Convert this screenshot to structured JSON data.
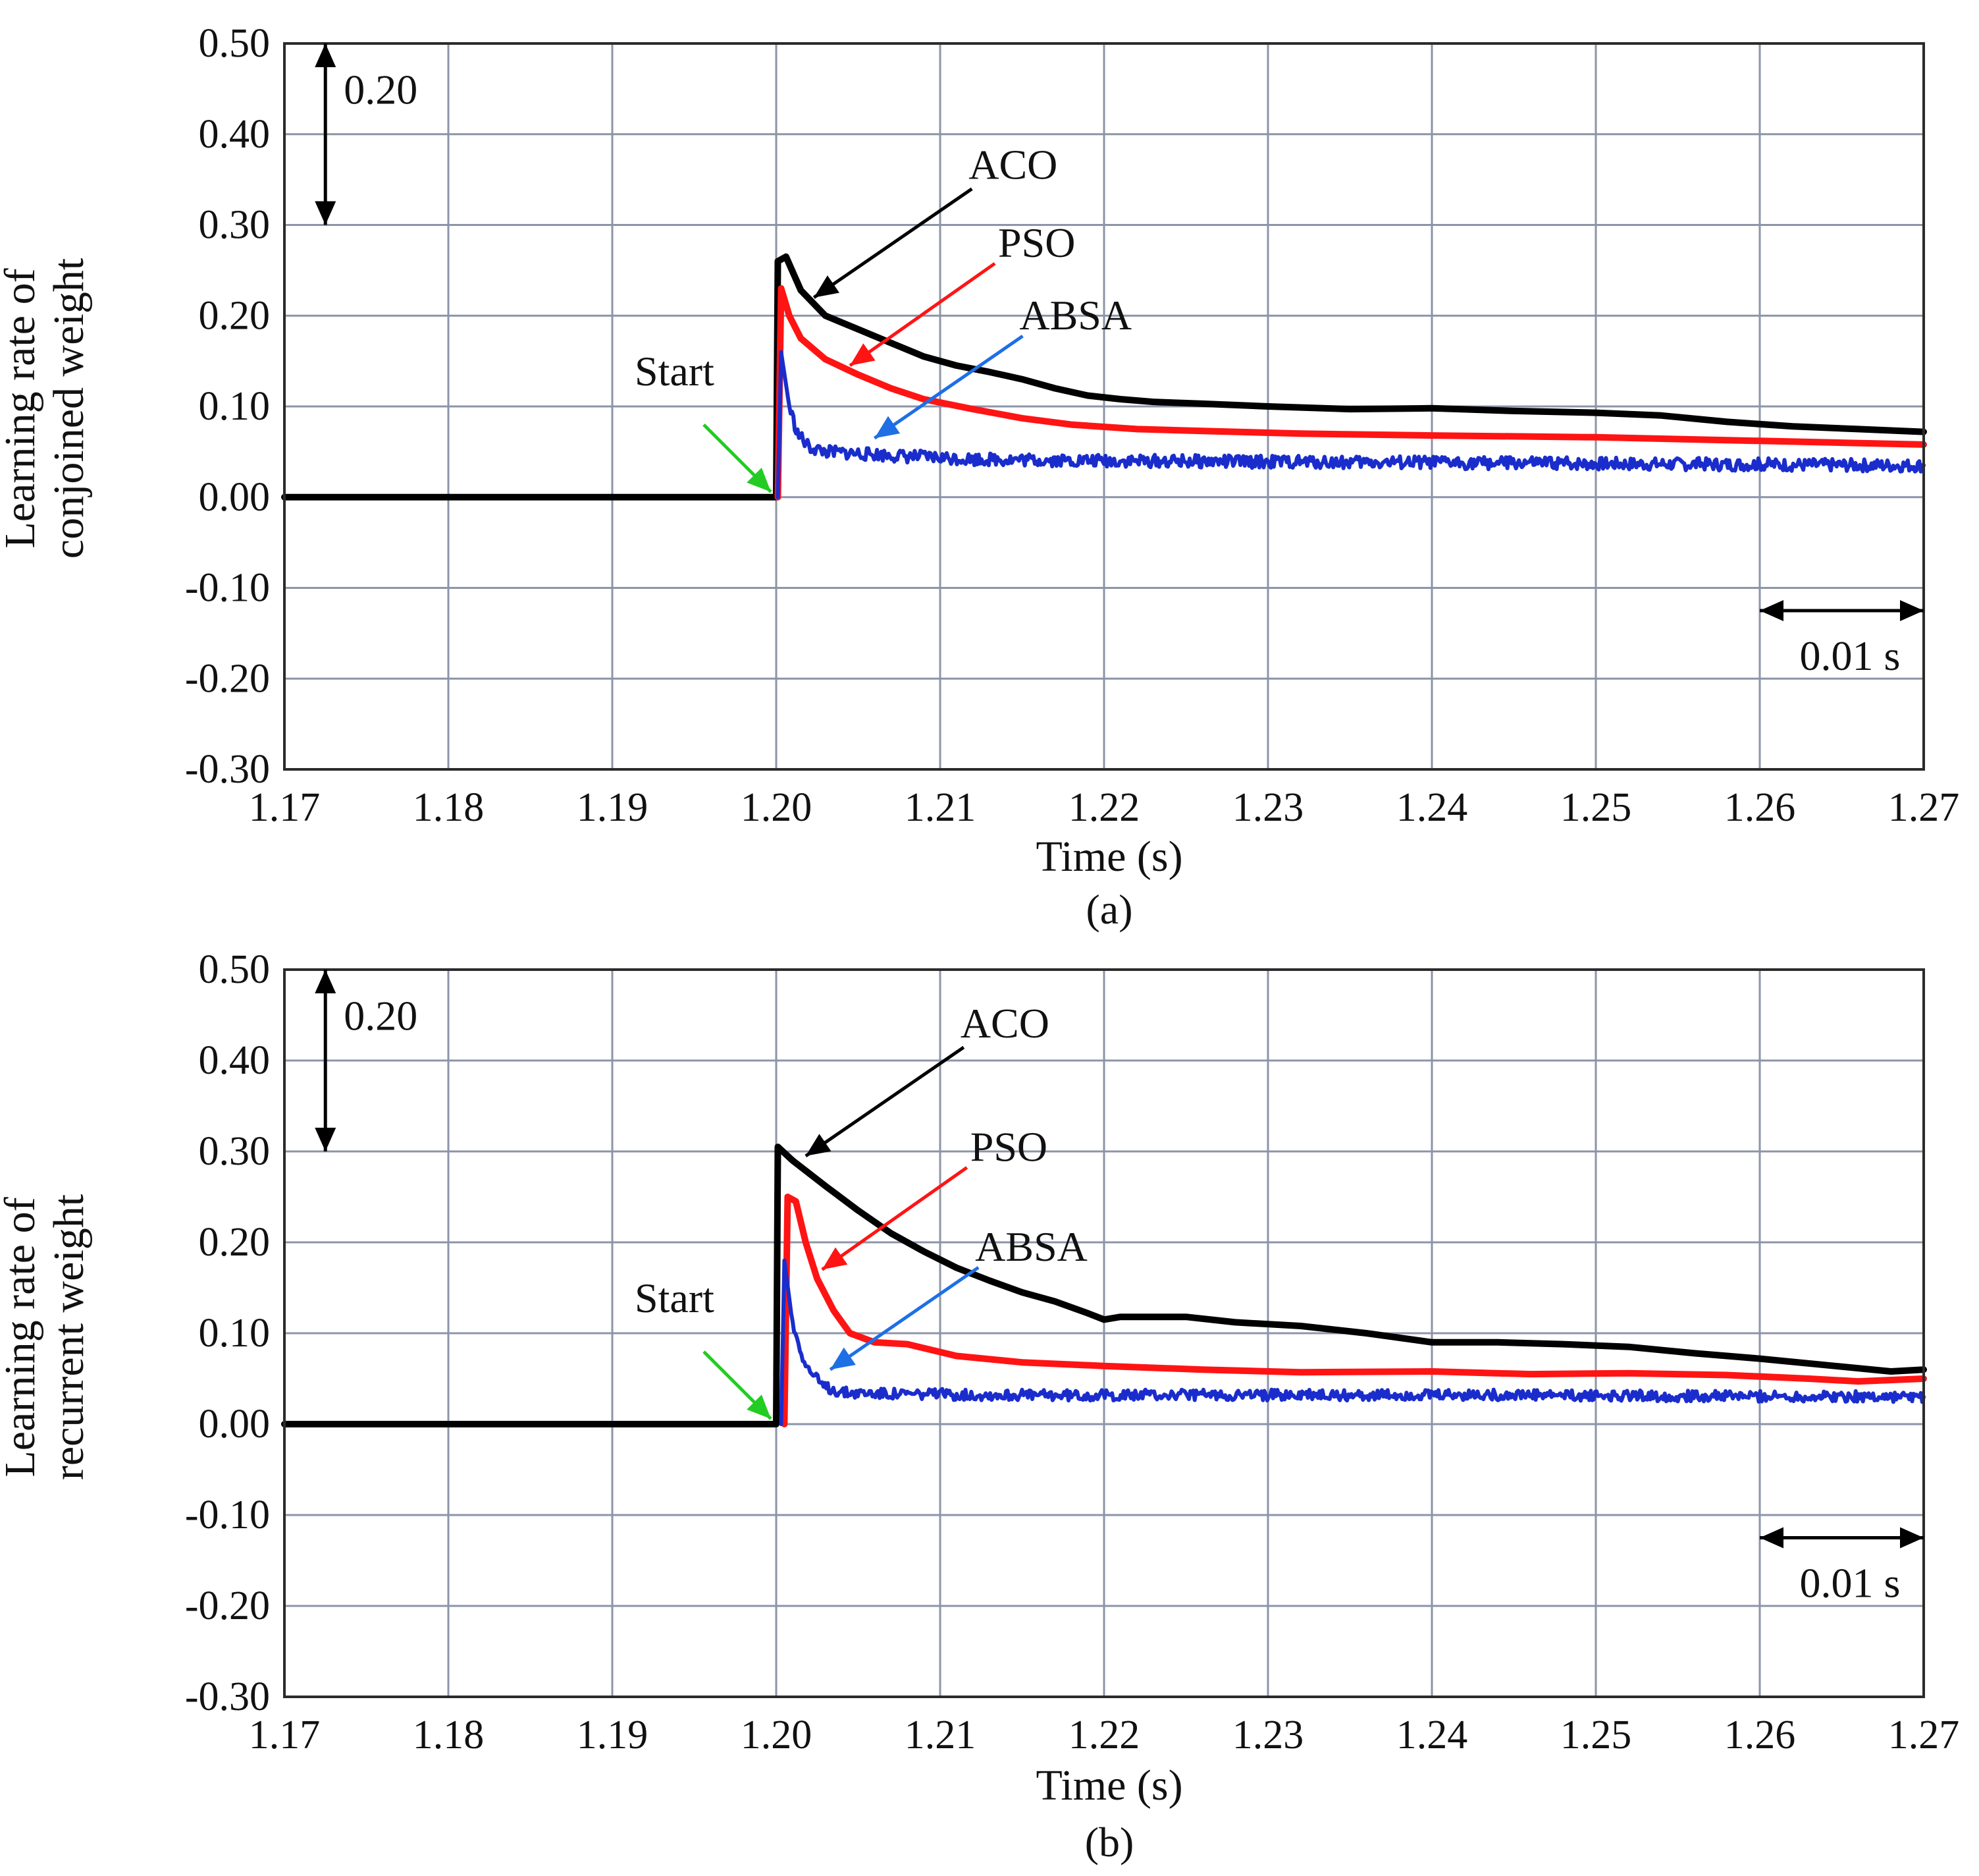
{
  "chart_data": [
    {
      "type": "line",
      "id": "a",
      "caption": "(a)",
      "xlabel": "Time (s)",
      "ylabel_lines": [
        "Learning rate of",
        "conjoined weight"
      ],
      "xlim": [
        1.17,
        1.27
      ],
      "ylim": [
        -0.3,
        0.5
      ],
      "grid": true,
      "x_ticks": [
        "1.17",
        "1.18",
        "1.19",
        "1.20",
        "1.21",
        "1.22",
        "1.23",
        "1.24",
        "1.25",
        "1.26",
        "1.27"
      ],
      "y_ticks": [
        "0.50",
        "0.40",
        "0.30",
        "0.20",
        "0.10",
        "0.00",
        "-0.10",
        "-0.20",
        "-0.30"
      ],
      "scale_bars": {
        "vertical": {
          "label": "0.20",
          "from": 0.3,
          "to": 0.5
        },
        "horizontal": {
          "label": "0.01 s",
          "from": 1.26,
          "to": 1.27
        }
      },
      "annotations": {
        "start": {
          "label": "Start",
          "x": 1.2,
          "y": 0.0
        },
        "aco": {
          "label": "ACO",
          "x": 1.2023,
          "y": 0.22
        },
        "pso": {
          "label": "PSO",
          "x": 1.2045,
          "y": 0.145
        },
        "absa": {
          "label": "ABSA",
          "x": 1.206,
          "y": 0.065
        }
      },
      "series": [
        {
          "name": "ACO",
          "color": "#000000",
          "noise": 0,
          "points": [
            [
              1.17,
              0.0
            ],
            [
              1.2,
              0.0
            ],
            [
              1.2001,
              0.26
            ],
            [
              1.2006,
              0.265
            ],
            [
              1.2015,
              0.228
            ],
            [
              1.203,
              0.2
            ],
            [
              1.205,
              0.185
            ],
            [
              1.207,
              0.17
            ],
            [
              1.209,
              0.155
            ],
            [
              1.211,
              0.145
            ],
            [
              1.213,
              0.138
            ],
            [
              1.215,
              0.13
            ],
            [
              1.217,
              0.12
            ],
            [
              1.219,
              0.112
            ],
            [
              1.221,
              0.108
            ],
            [
              1.223,
              0.105
            ],
            [
              1.226,
              0.103
            ],
            [
              1.23,
              0.1
            ],
            [
              1.235,
              0.097
            ],
            [
              1.24,
              0.098
            ],
            [
              1.245,
              0.095
            ],
            [
              1.25,
              0.093
            ],
            [
              1.254,
              0.09
            ],
            [
              1.258,
              0.083
            ],
            [
              1.262,
              0.078
            ],
            [
              1.266,
              0.075
            ],
            [
              1.27,
              0.072
            ]
          ]
        },
        {
          "name": "PSO",
          "color": "#ff1414",
          "noise": 0,
          "points": [
            [
              1.2001,
              0.0
            ],
            [
              1.2003,
              0.23
            ],
            [
              1.2008,
              0.2
            ],
            [
              1.2015,
              0.175
            ],
            [
              1.203,
              0.152
            ],
            [
              1.205,
              0.135
            ],
            [
              1.207,
              0.12
            ],
            [
              1.209,
              0.108
            ],
            [
              1.212,
              0.097
            ],
            [
              1.215,
              0.087
            ],
            [
              1.218,
              0.08
            ],
            [
              1.222,
              0.075
            ],
            [
              1.226,
              0.073
            ],
            [
              1.232,
              0.07
            ],
            [
              1.24,
              0.068
            ],
            [
              1.25,
              0.066
            ],
            [
              1.26,
              0.062
            ],
            [
              1.265,
              0.06
            ],
            [
              1.27,
              0.058
            ]
          ]
        },
        {
          "name": "ABSA",
          "color": "#1a2dcc",
          "noise": 0.007,
          "points": [
            [
              1.2001,
              0.0
            ],
            [
              1.2003,
              0.16
            ],
            [
              1.2008,
              0.1
            ],
            [
              1.2013,
              0.07
            ],
            [
              1.202,
              0.055
            ],
            [
              1.203,
              0.05
            ],
            [
              1.205,
              0.048
            ],
            [
              1.208,
              0.045
            ],
            [
              1.212,
              0.042
            ],
            [
              1.22,
              0.04
            ],
            [
              1.23,
              0.039
            ],
            [
              1.24,
              0.038
            ],
            [
              1.25,
              0.037
            ],
            [
              1.26,
              0.036
            ],
            [
              1.27,
              0.035
            ]
          ]
        }
      ]
    },
    {
      "type": "line",
      "id": "b",
      "caption": "(b)",
      "xlabel": "Time (s)",
      "ylabel_lines": [
        "Learning rate of",
        "recurrent weight"
      ],
      "xlim": [
        1.17,
        1.27
      ],
      "ylim": [
        -0.3,
        0.5
      ],
      "grid": true,
      "x_ticks": [
        "1.17",
        "1.18",
        "1.19",
        "1.20",
        "1.21",
        "1.22",
        "1.23",
        "1.24",
        "1.25",
        "1.26",
        "1.27"
      ],
      "y_ticks": [
        "0.50",
        "0.40",
        "0.30",
        "0.20",
        "0.10",
        "0.00",
        "-0.10",
        "-0.20",
        "-0.30"
      ],
      "scale_bars": {
        "vertical": {
          "label": "0.20",
          "from": 0.3,
          "to": 0.5
        },
        "horizontal": {
          "label": "0.01 s",
          "from": 1.26,
          "to": 1.27
        }
      },
      "annotations": {
        "start": {
          "label": "Start",
          "x": 1.2,
          "y": 0.0
        },
        "aco": {
          "label": "ACO",
          "x": 1.2018,
          "y": 0.295
        },
        "pso": {
          "label": "PSO",
          "x": 1.2028,
          "y": 0.17
        },
        "absa": {
          "label": "ABSA",
          "x": 1.2033,
          "y": 0.06
        }
      },
      "series": [
        {
          "name": "ACO",
          "color": "#000000",
          "noise": 0,
          "points": [
            [
              1.17,
              0.0
            ],
            [
              1.2,
              0.0
            ],
            [
              1.2001,
              0.305
            ],
            [
              1.201,
              0.29
            ],
            [
              1.203,
              0.262
            ],
            [
              1.205,
              0.235
            ],
            [
              1.207,
              0.21
            ],
            [
              1.209,
              0.19
            ],
            [
              1.211,
              0.172
            ],
            [
              1.213,
              0.158
            ],
            [
              1.215,
              0.145
            ],
            [
              1.217,
              0.135
            ],
            [
              1.219,
              0.122
            ],
            [
              1.22,
              0.115
            ],
            [
              1.221,
              0.118
            ],
            [
              1.225,
              0.118
            ],
            [
              1.228,
              0.112
            ],
            [
              1.232,
              0.108
            ],
            [
              1.236,
              0.1
            ],
            [
              1.24,
              0.09
            ],
            [
              1.244,
              0.09
            ],
            [
              1.248,
              0.088
            ],
            [
              1.252,
              0.085
            ],
            [
              1.256,
              0.078
            ],
            [
              1.26,
              0.072
            ],
            [
              1.264,
              0.065
            ],
            [
              1.268,
              0.058
            ],
            [
              1.27,
              0.06
            ]
          ]
        },
        {
          "name": "PSO",
          "color": "#ff1414",
          "noise": 0,
          "points": [
            [
              1.2005,
              0.0
            ],
            [
              1.2007,
              0.25
            ],
            [
              1.2012,
              0.245
            ],
            [
              1.2018,
              0.2
            ],
            [
              1.2025,
              0.16
            ],
            [
              1.2035,
              0.125
            ],
            [
              1.2045,
              0.1
            ],
            [
              1.206,
              0.09
            ],
            [
              1.208,
              0.088
            ],
            [
              1.211,
              0.075
            ],
            [
              1.215,
              0.068
            ],
            [
              1.22,
              0.064
            ],
            [
              1.226,
              0.06
            ],
            [
              1.232,
              0.057
            ],
            [
              1.24,
              0.058
            ],
            [
              1.246,
              0.055
            ],
            [
              1.252,
              0.056
            ],
            [
              1.258,
              0.054
            ],
            [
              1.263,
              0.05
            ],
            [
              1.266,
              0.047
            ],
            [
              1.27,
              0.05
            ]
          ]
        },
        {
          "name": "ABSA",
          "color": "#1a2dcc",
          "noise": 0.006,
          "points": [
            [
              1.2003,
              0.0
            ],
            [
              1.2005,
              0.18
            ],
            [
              1.201,
              0.11
            ],
            [
              1.2018,
              0.065
            ],
            [
              1.2028,
              0.042
            ],
            [
              1.204,
              0.035
            ],
            [
              1.208,
              0.033
            ],
            [
              1.215,
              0.032
            ],
            [
              1.225,
              0.032
            ],
            [
              1.235,
              0.032
            ],
            [
              1.245,
              0.032
            ],
            [
              1.255,
              0.031
            ],
            [
              1.27,
              0.03
            ]
          ]
        }
      ]
    }
  ]
}
